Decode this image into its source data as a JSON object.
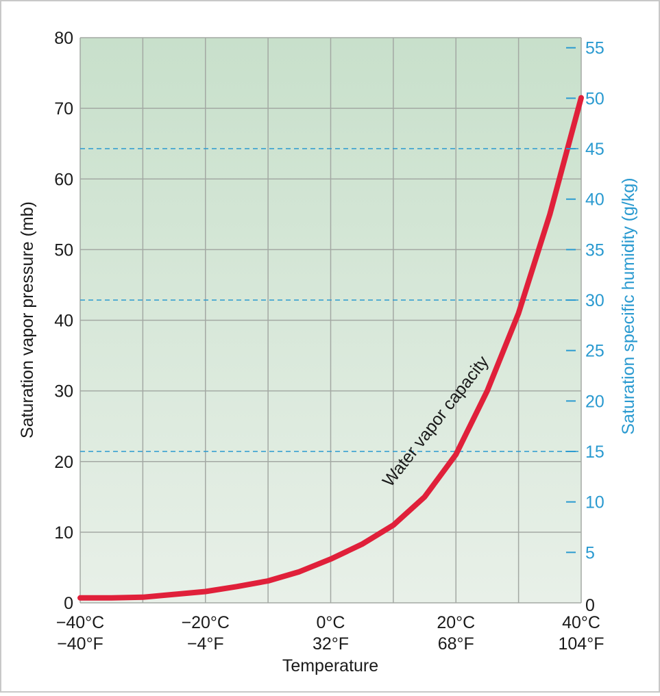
{
  "chart_data": {
    "type": "line",
    "x_label": "Temperature",
    "y_label": "Saturation vapor pressure (mb)",
    "y2_label": "Saturation specific humidity (g/kg)",
    "annotation": "Water vapor capacity",
    "x": [
      -40,
      -35,
      -30,
      -25,
      -20,
      -15,
      -10,
      -5,
      0,
      5,
      10,
      15,
      20,
      25,
      30,
      35,
      40
    ],
    "series": [
      {
        "name": "Water vapor capacity",
        "color": "#e0203a",
        "values": [
          0.7,
          0.7,
          0.8,
          1.2,
          1.6,
          2.3,
          3.1,
          4.4,
          6.2,
          8.3,
          11,
          15,
          21,
          30,
          41,
          55,
          71.5
        ]
      }
    ],
    "xlim": [
      -40,
      40
    ],
    "xticks": [
      {
        "value": -40,
        "label": "−40°C"
      },
      {
        "value": -20,
        "label": "−20°C"
      },
      {
        "value": 0,
        "label": "0°C"
      },
      {
        "value": 20,
        "label": "20°C"
      },
      {
        "value": 40,
        "label": "40°C"
      }
    ],
    "xtick_labels_f": [
      "−40°F",
      "−4°F",
      "32°F",
      "68°F",
      "104°F"
    ],
    "xgrid": [
      -30,
      -10,
      10,
      30
    ],
    "ylim": [
      0,
      80
    ],
    "yticks": [
      0,
      10,
      20,
      30,
      40,
      50,
      60,
      70,
      80
    ],
    "y2lim": [
      0,
      56
    ],
    "y2ticks": [
      0,
      5,
      10,
      15,
      20,
      25,
      30,
      35,
      40,
      45,
      50,
      55
    ],
    "y2grid": [
      15,
      30,
      45
    ],
    "y2color": "#2a9ad0",
    "grid": true
  }
}
